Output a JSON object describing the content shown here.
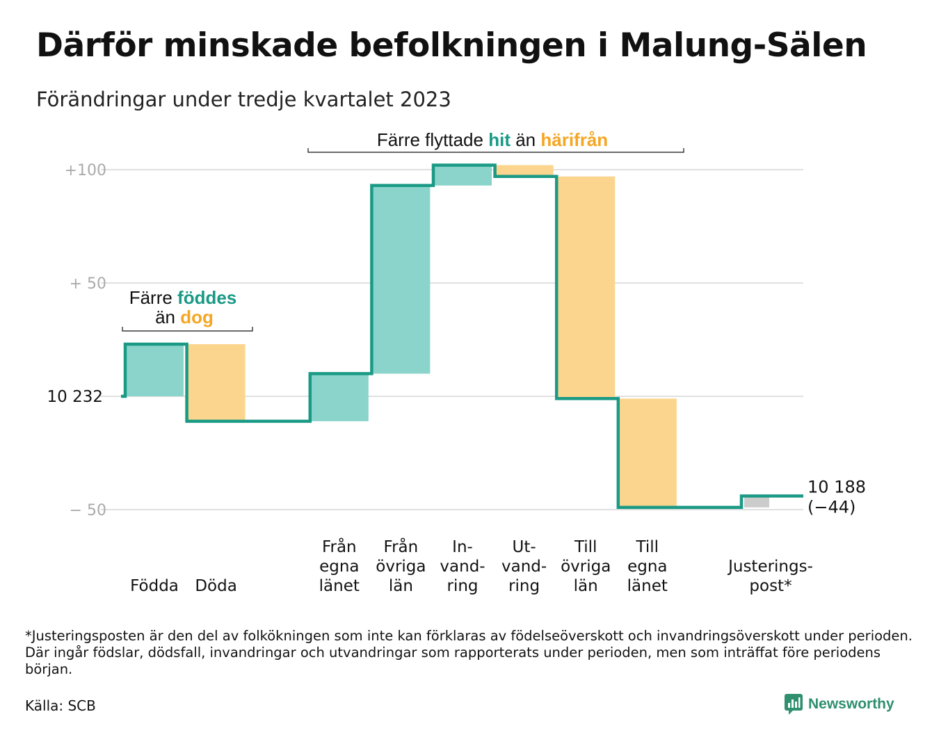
{
  "title": "Därför minskade befolkningen i Malung-Sälen",
  "subtitle": "Förändringar under tredje kvartalet 2023",
  "colors": {
    "increase": "#8ad4cb",
    "decrease": "#fbd58d",
    "adjustment": "#cccccc",
    "line": "#1a9a85",
    "accent_teal": "#1a9a85",
    "accent_orange": "#f5a623",
    "grid": "#e0e0e0"
  },
  "chart_data": {
    "type": "waterfall",
    "start_value": 10232,
    "start_label": "10  232",
    "end_value": 10188,
    "end_label": "10 188",
    "end_change_label": "(−44)",
    "y_ticks": [
      {
        "value": 100,
        "label": "+100"
      },
      {
        "value": 50,
        "label": "+  50"
      },
      {
        "value": -50,
        "label": "−  50"
      }
    ],
    "ylim": [
      -58,
      102
    ],
    "grid": true,
    "steps": [
      {
        "name": "Födda",
        "label_lines": [
          "Födda"
        ],
        "change": 23,
        "kind": "increase"
      },
      {
        "name": "Döda",
        "label_lines": [
          "Döda"
        ],
        "change": -34,
        "kind": "decrease"
      },
      {
        "name": "",
        "label_lines": [],
        "change": 0,
        "kind": "none"
      },
      {
        "name": "Från egna länet",
        "label_lines": [
          "Från",
          "egna",
          "länet"
        ],
        "change": 21,
        "kind": "increase"
      },
      {
        "name": "Från övriga län",
        "label_lines": [
          "Från",
          "övriga",
          "län"
        ],
        "change": 83,
        "kind": "increase"
      },
      {
        "name": "Invandring",
        "label_lines": [
          "In-",
          "vand-",
          "ring"
        ],
        "change": 9,
        "kind": "increase"
      },
      {
        "name": "Utvandring",
        "label_lines": [
          "Ut-",
          "vand-",
          "ring"
        ],
        "change": -5,
        "kind": "decrease"
      },
      {
        "name": "Till övriga län",
        "label_lines": [
          "Till",
          "övriga",
          "län"
        ],
        "change": -98,
        "kind": "decrease"
      },
      {
        "name": "Till egna länet",
        "label_lines": [
          "Till",
          "egna",
          "länet"
        ],
        "change": -48,
        "kind": "decrease"
      },
      {
        "name": "",
        "label_lines": [],
        "change": 0,
        "kind": "none"
      },
      {
        "name": "Justeringspost*",
        "label_lines": [
          "Justerings-",
          "post*"
        ],
        "change": 5,
        "kind": "adjustment"
      }
    ],
    "annotations": [
      {
        "parts": [
          {
            "text": "Färre ",
            "style": "normal"
          },
          {
            "text": "föddes",
            "style": "teal"
          }
        ]
      },
      {
        "parts": [
          {
            "text": "än ",
            "style": "normal"
          },
          {
            "text": "dog",
            "style": "orange"
          }
        ]
      },
      {
        "parts": [
          {
            "text": "Färre flyttade ",
            "style": "normal"
          },
          {
            "text": "hit",
            "style": "teal"
          },
          {
            "text": "  än ",
            "style": "normal"
          },
          {
            "text": "härifrån",
            "style": "orange"
          }
        ]
      }
    ]
  },
  "footnote": "*Justeringsposten är den del av folkökningen som inte kan förklaras av födelseöverskott och invandringsöverskott under perioden. Där ingår födslar, dödsfall, invandringar och utvandringar som rapporterats under perioden, men som inträffat före periodens början.",
  "source": "Källa: SCB",
  "brand": {
    "name": "Newsworthy",
    "icon": "newsworthy-logo-icon"
  }
}
